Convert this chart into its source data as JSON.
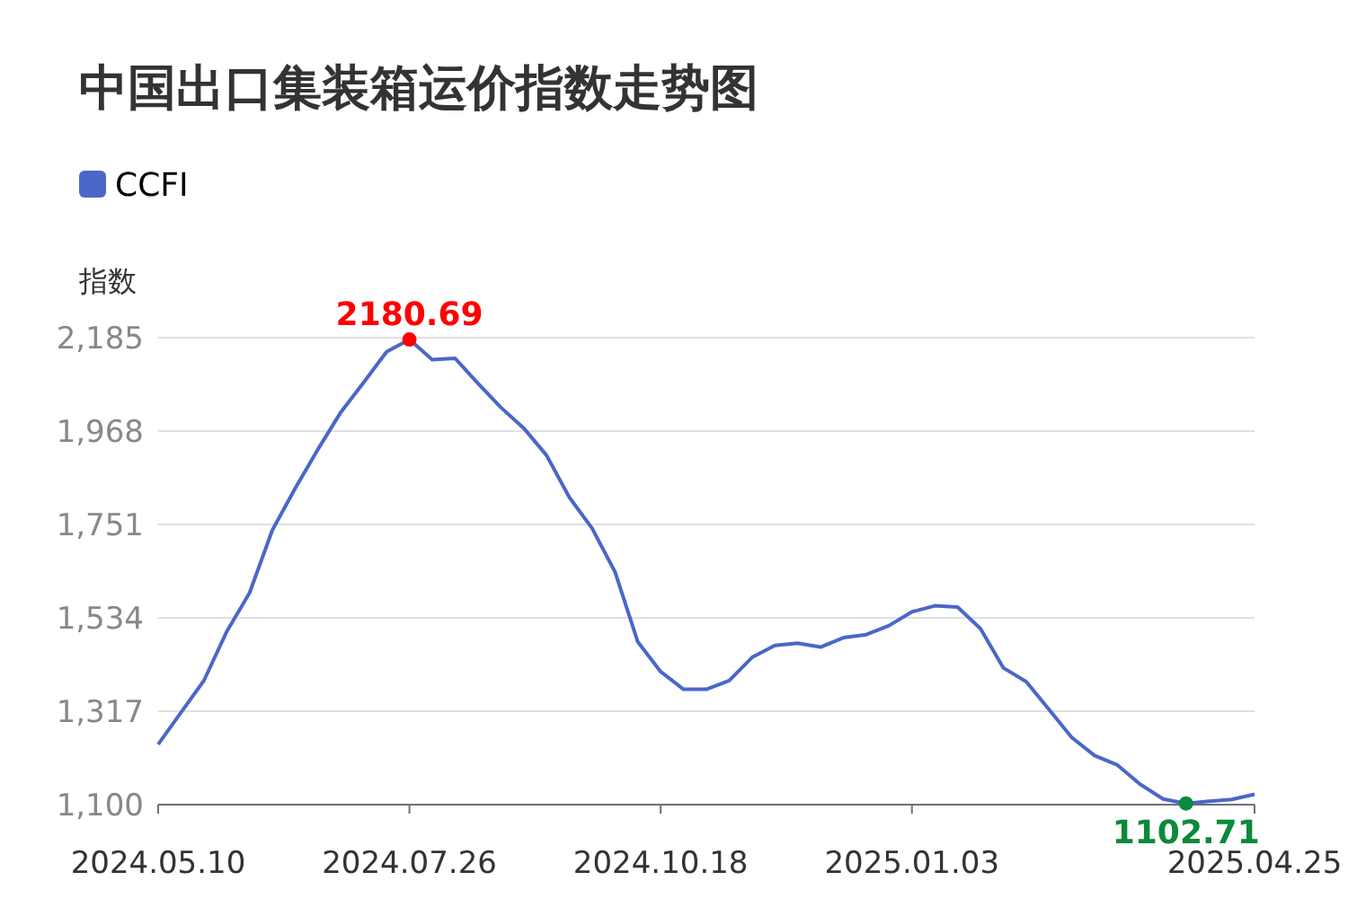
{
  "chart_data": {
    "type": "line",
    "title": "中国出口集装箱运价指数走势图",
    "ylabel": "指数",
    "categories": [
      "2024.05.10",
      null,
      null,
      null,
      null,
      null,
      null,
      null,
      null,
      null,
      null,
      "2024.07.26",
      null,
      null,
      null,
      null,
      null,
      null,
      null,
      null,
      null,
      null,
      "2024.10.18",
      null,
      null,
      null,
      null,
      null,
      null,
      null,
      null,
      null,
      null,
      "2025.01.03",
      null,
      null,
      null,
      null,
      null,
      null,
      null,
      null,
      null,
      null,
      null,
      null,
      null,
      null,
      "2025.04.25"
    ],
    "series": [
      {
        "name": "CCFI",
        "color": "#4a67c8",
        "values": [
          1240,
          1314,
          1388,
          1502,
          1592,
          1738,
          1835,
          1926,
          2012,
          2081,
          2152,
          2180.69,
          2134,
          2137,
          2079,
          2023,
          1975,
          1912,
          1814,
          1742,
          1641,
          1478,
          1409,
          1368,
          1368,
          1388,
          1442,
          1470,
          1475,
          1466,
          1488,
          1495,
          1516,
          1548,
          1562,
          1559,
          1509,
          1418,
          1386,
          1321,
          1256,
          1214,
          1192,
          1147,
          1113,
          1102.71,
          1108,
          1112,
          1124
        ]
      }
    ],
    "ylim": [
      1100,
      2185
    ],
    "yticks": [
      {
        "value": 1100,
        "label": "1,100"
      },
      {
        "value": 1317,
        "label": "1,317"
      },
      {
        "value": 1534,
        "label": "1,534"
      },
      {
        "value": 1751,
        "label": "1,751"
      },
      {
        "value": 1968,
        "label": "1,968"
      },
      {
        "value": 2185,
        "label": "2,185"
      }
    ],
    "grid": "y",
    "legend": "top left",
    "marker": "none",
    "annotations": [
      {
        "text": "2180.69",
        "x": "2024.07.26",
        "y": 2180.69
      },
      {
        "text": "1102.71",
        "y": 1102.71
      }
    ]
  }
}
